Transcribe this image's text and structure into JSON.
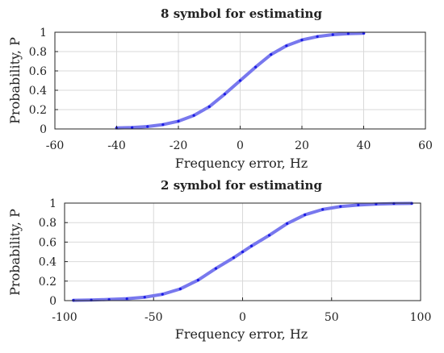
{
  "chart_data": [
    {
      "type": "line",
      "title": "8 symbol for estimating",
      "xlabel": "Frequency error, Hz",
      "ylabel": "Probability, P",
      "xlim": [
        -60,
        60
      ],
      "ylim": [
        0,
        1
      ],
      "xticks": [
        -60,
        -40,
        -20,
        0,
        20,
        40,
        60
      ],
      "yticks": [
        0,
        0.2,
        0.4,
        0.6,
        0.8,
        1
      ],
      "grid": true,
      "series": [
        {
          "color": "#7878ee",
          "marker_color": "#1a1ae6",
          "x": [
            -40,
            -35,
            -30,
            -25,
            -20,
            -15,
            -10,
            -5,
            0,
            5,
            10,
            15,
            20,
            25,
            30,
            35,
            40
          ],
          "y": [
            0.01,
            0.015,
            0.025,
            0.045,
            0.08,
            0.14,
            0.23,
            0.36,
            0.5,
            0.64,
            0.77,
            0.86,
            0.92,
            0.955,
            0.975,
            0.985,
            0.99
          ]
        }
      ]
    },
    {
      "type": "line",
      "title": "2 symbol for estimating",
      "xlabel": "Frequency error, Hz",
      "ylabel": "Probability, P",
      "xlim": [
        -100,
        100
      ],
      "ylim": [
        0,
        1
      ],
      "xticks": [
        -100,
        -50,
        0,
        50,
        100
      ],
      "yticks": [
        0,
        0.2,
        0.4,
        0.6,
        0.8,
        1
      ],
      "grid": true,
      "series": [
        {
          "color": "#7878ee",
          "marker_color": "#1a1ae6",
          "x": [
            -95,
            -85,
            -75,
            -65,
            -55,
            -45,
            -35,
            -25,
            -15,
            -5,
            0,
            5,
            15,
            25,
            35,
            45,
            55,
            65,
            75,
            85,
            95
          ],
          "y": [
            0.003,
            0.006,
            0.012,
            0.02,
            0.035,
            0.065,
            0.12,
            0.21,
            0.33,
            0.44,
            0.5,
            0.56,
            0.67,
            0.79,
            0.88,
            0.935,
            0.965,
            0.98,
            0.99,
            0.995,
            0.997
          ]
        }
      ]
    }
  ]
}
